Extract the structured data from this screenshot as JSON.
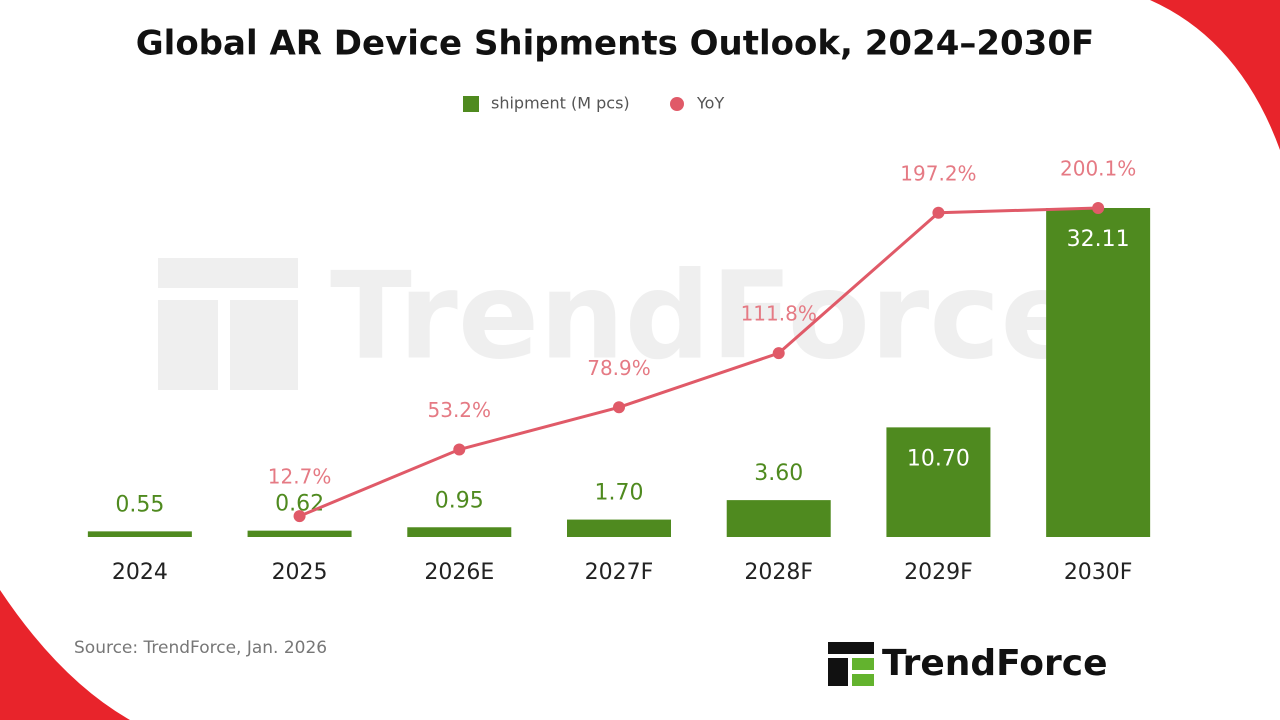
{
  "chart_data": {
    "type": "bar",
    "title": "Global AR Device Shipments Outlook, 2024–2030F",
    "categories": [
      "2024",
      "2025",
      "2026E",
      "2027F",
      "2028F",
      "2029F",
      "2030F"
    ],
    "series": [
      {
        "name": "shipment (M pcs)",
        "type": "bar",
        "color": "#4f8a1f",
        "values": [
          0.55,
          0.62,
          0.95,
          1.7,
          3.6,
          10.7,
          32.11
        ],
        "value_labels": [
          "0.55",
          "0.62",
          "0.95",
          "1.70",
          "3.60",
          "10.70",
          "32.11"
        ]
      },
      {
        "name": "YoY",
        "type": "line",
        "color": "#e05a68",
        "values": [
          null,
          12.7,
          53.2,
          78.9,
          111.8,
          197.2,
          200.1
        ],
        "value_labels": [
          null,
          "12.7%",
          "53.2%",
          "78.9%",
          "111.8%",
          "197.2%",
          "200.1%"
        ]
      }
    ],
    "watermark": "TrendForce",
    "source": "Source: TrendForce, Jan. 2026",
    "logo": "TrendForce"
  }
}
